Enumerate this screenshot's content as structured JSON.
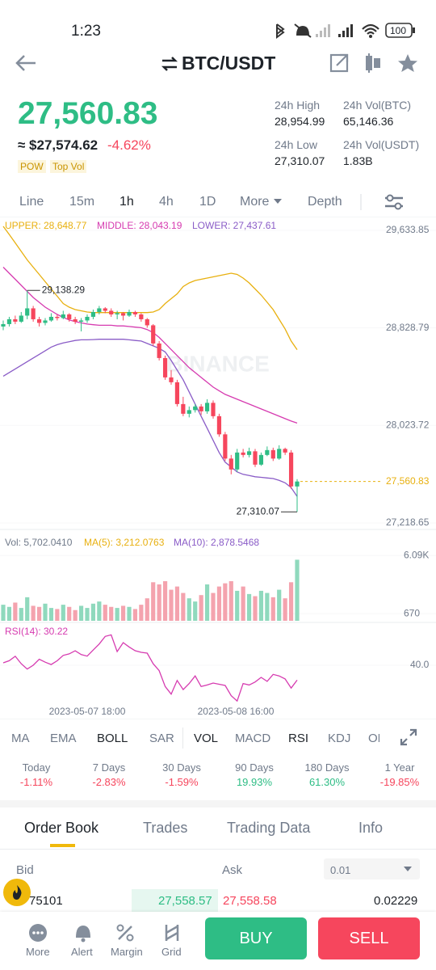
{
  "status_bar": {
    "time": "1:23",
    "battery": "100"
  },
  "header": {
    "pair": "BTC/USDT"
  },
  "price": {
    "last": "27,560.83",
    "usd": "≈ $27,574.62",
    "change": "-4.62%",
    "tags": [
      "POW",
      "Top Vol"
    ]
  },
  "stats": [
    {
      "label": "24h High",
      "value": "28,954.99"
    },
    {
      "label": "24h Vol(BTC)",
      "value": "65,146.36"
    },
    {
      "label": "24h Low",
      "value": "27,310.07"
    },
    {
      "label": "24h Vol(USDT)",
      "value": "1.83B"
    }
  ],
  "timeframes": [
    "Line",
    "15m",
    "1h",
    "4h",
    "1D",
    "More",
    "Depth"
  ],
  "price_chart": {
    "type": "candlestick",
    "indicator_labels": [
      "UPPER: 28,648.77",
      "MIDDLE: 28,043.19",
      "LOWER: 27,437.61"
    ],
    "watermark": "BINANCE",
    "colors": {
      "up": "#2ebd85",
      "down": "#f6465d",
      "upper": "#e8b00f",
      "middle": "#d63bb0",
      "lower": "#8a5cc7",
      "last": "#e8b00f"
    },
    "ylim": [
      27165,
      29747
    ],
    "yticks": [
      {
        "value": 29633.85,
        "label": "29,633.85"
      },
      {
        "value": 28828.79,
        "label": "28,828.79"
      },
      {
        "value": 28023.72,
        "label": "28,023.72"
      },
      {
        "value": 27218.65,
        "label": "27,218.65"
      }
    ],
    "candles": [
      [
        28840,
        28890,
        28810,
        28860
      ],
      [
        28860,
        28920,
        28840,
        28900
      ],
      [
        28900,
        28930,
        28860,
        28880
      ],
      [
        28880,
        28960,
        28870,
        28930
      ],
      [
        28930,
        29138.29,
        28900,
        28990
      ],
      [
        28990,
        29010,
        28880,
        28900
      ],
      [
        28900,
        28920,
        28840,
        28870
      ],
      [
        28870,
        28910,
        28850,
        28890
      ],
      [
        28890,
        28950,
        28880,
        28920
      ],
      [
        28920,
        28940,
        28890,
        28910
      ],
      [
        28910,
        28970,
        28900,
        28940
      ],
      [
        28940,
        28950,
        28880,
        28900
      ],
      [
        28900,
        28920,
        28860,
        28880
      ],
      [
        28880,
        28910,
        28800,
        28890
      ],
      [
        28890,
        28940,
        28870,
        28920
      ],
      [
        28920,
        28980,
        28900,
        28960
      ],
      [
        28960,
        29010,
        28940,
        28990
      ],
      [
        28990,
        29000,
        28950,
        28970
      ],
      [
        28970,
        28990,
        28920,
        28940
      ],
      [
        28940,
        28970,
        28900,
        28950
      ],
      [
        28950,
        28960,
        28890,
        28930
      ],
      [
        28930,
        28980,
        28920,
        28960
      ],
      [
        28960,
        28970,
        28920,
        28940
      ],
      [
        28940,
        28950,
        28880,
        28900
      ],
      [
        28900,
        28910,
        28830,
        28850
      ],
      [
        28850,
        28860,
        28680,
        28700
      ],
      [
        28700,
        28720,
        28560,
        28580
      ],
      [
        28580,
        28600,
        28400,
        28420
      ],
      [
        28420,
        28480,
        28360,
        28380
      ],
      [
        28380,
        28400,
        28180,
        28200
      ],
      [
        28200,
        28260,
        28100,
        28120
      ],
      [
        28120,
        28180,
        28090,
        28150
      ],
      [
        28150,
        28200,
        28130,
        28180
      ],
      [
        28180,
        28200,
        28110,
        28140
      ],
      [
        28140,
        28240,
        28120,
        28210
      ],
      [
        28210,
        28230,
        28080,
        28100
      ],
      [
        28100,
        28120,
        27930,
        27950
      ],
      [
        27950,
        27970,
        27730,
        27750
      ],
      [
        27750,
        27780,
        27620,
        27660
      ],
      [
        27660,
        27830,
        27640,
        27800
      ],
      [
        27800,
        27830,
        27760,
        27780
      ],
      [
        27780,
        27840,
        27760,
        27810
      ],
      [
        27810,
        27830,
        27680,
        27700
      ],
      [
        27700,
        27800,
        27690,
        27780
      ],
      [
        27780,
        27850,
        27770,
        27820
      ],
      [
        27820,
        27840,
        27730,
        27750
      ],
      [
        27750,
        27860,
        27740,
        27830
      ],
      [
        27830,
        27840,
        27780,
        27800
      ],
      [
        27800,
        27820,
        27500,
        27520
      ],
      [
        27520,
        27580,
        27310.07,
        27560.83
      ]
    ],
    "upper": [
      29667,
      29600,
      29530,
      29460,
      29390,
      29330,
      29270,
      29210,
      29150,
      29090,
      29030,
      29000,
      28980,
      28970,
      28960,
      28955,
      28955,
      28955,
      28955,
      28955,
      28955,
      28955,
      28955,
      28955,
      28955,
      28960,
      28980,
      29030,
      29070,
      29110,
      29170,
      29200,
      29220,
      29230,
      29240,
      29250,
      29260,
      29270,
      29280,
      29270,
      29240,
      29200,
      29150,
      29100,
      29040,
      28980,
      28900,
      28820,
      28720,
      28648.77
    ],
    "middle": [
      29330,
      29280,
      29230,
      29180,
      29130,
      29080,
      29040,
      29000,
      28970,
      28940,
      28915,
      28895,
      28880,
      28870,
      28860,
      28855,
      28850,
      28850,
      28850,
      28845,
      28845,
      28840,
      28835,
      28830,
      28815,
      28790,
      28750,
      28700,
      28650,
      28600,
      28550,
      28500,
      28460,
      28420,
      28380,
      28340,
      28310,
      28280,
      28260,
      28240,
      28220,
      28200,
      28180,
      28160,
      28140,
      28120,
      28100,
      28080,
      28060,
      28043.19
    ],
    "lower": [
      28430,
      28460,
      28490,
      28520,
      28550,
      28580,
      28610,
      28640,
      28670,
      28690,
      28705,
      28715,
      28725,
      28730,
      28730,
      28732,
      28735,
      28735,
      28735,
      28735,
      28735,
      28730,
      28725,
      28720,
      28700,
      28680,
      28660,
      28630,
      28560,
      28480,
      28400,
      28300,
      28200,
      28100,
      28000,
      27900,
      27800,
      27720,
      27680,
      27640,
      27620,
      27610,
      27600,
      27595,
      27590,
      27585,
      27570,
      27550,
      27510,
      27437.61
    ],
    "high_marker": {
      "value": 29138.29,
      "label": "29,138.29"
    },
    "low_marker": {
      "value": 27310.07,
      "label": "27,310.07"
    },
    "last_price": {
      "value": 27560.83,
      "label": "27,560.83"
    }
  },
  "volume_chart": {
    "type": "bar",
    "labels": [
      "Vol: 5,702.0410",
      "MA(5): 3,212.0763",
      "MA(10): 2,878.5468"
    ],
    "colors": {
      "up": "#8fd9bd",
      "down": "#f4a3ae",
      "label": "#707a8a",
      "ma5": "#e8b00f",
      "ma10": "#8a5cc7"
    },
    "ylim": [
      0,
      8000
    ],
    "yticks": [
      {
        "value": 6090,
        "label": "6.09K"
      },
      670
    ],
    "values": [
      1500,
      1300,
      1700,
      1200,
      2200,
      1400,
      1300,
      1600,
      1200,
      1100,
      1500,
      1300,
      1000,
      1400,
      1200,
      1600,
      1800,
      1500,
      1300,
      1200,
      1400,
      1300,
      1100,
      1500,
      2100,
      3600,
      3400,
      3700,
      2900,
      3200,
      2600,
      2100,
      1800,
      2400,
      3400,
      2600,
      3200,
      3500,
      3700,
      2800,
      3200,
      2500,
      2300,
      2800,
      2600,
      2200,
      2900,
      2100,
      3600,
      5702.041
    ]
  },
  "rsi_chart": {
    "type": "line",
    "label": "RSI(14): 30.22",
    "color": "#d63bb0",
    "ylim": [
      15,
      65
    ],
    "yticks": [
      {
        "value": 40,
        "label": "40.0"
      }
    ],
    "values": [
      41.6,
      43,
      45.9,
      41,
      37.5,
      40,
      44,
      42,
      40.5,
      43,
      46.5,
      47.5,
      49.5,
      47,
      46,
      50,
      54,
      59,
      60,
      49,
      54.9,
      52,
      49.6,
      48.5,
      48,
      41,
      36.5,
      26,
      21,
      30,
      24,
      28,
      33,
      26,
      27,
      28.3,
      27.5,
      26.7,
      20,
      16.5,
      28,
      27,
      29,
      32,
      29.4,
      34,
      33,
      31,
      25,
      30.22
    ]
  },
  "x_labels": [
    "2023-05-07 18:00",
    "2023-05-08 16:00"
  ],
  "indicator_tabs": [
    "MA",
    "EMA",
    "BOLL",
    "SAR",
    "VOL",
    "MACD",
    "RSI",
    "KDJ",
    "OBV"
  ],
  "performance": [
    {
      "label": "Today",
      "value": "-1.11%"
    },
    {
      "label": "7 Days",
      "value": "-2.83%"
    },
    {
      "label": "30 Days",
      "value": "-1.59%"
    },
    {
      "label": "90 Days",
      "value": "19.93%"
    },
    {
      "label": "180 Days",
      "value": "61.30%"
    },
    {
      "label": "1 Year",
      "value": "-19.85%"
    }
  ],
  "tabs": [
    "Order Book",
    "Trades",
    "Trading Data",
    "Info"
  ],
  "order_book": {
    "bid": "Bid",
    "ask": "Ask",
    "precision": "0.01",
    "rows": [
      [
        "75101",
        "27,558.57",
        "27,558.58",
        "0.02229"
      ]
    ]
  },
  "bottom_bar": {
    "items": [
      "More",
      "Alert",
      "Margin",
      "Grid"
    ],
    "buy": "BUY",
    "sell": "SELL"
  }
}
